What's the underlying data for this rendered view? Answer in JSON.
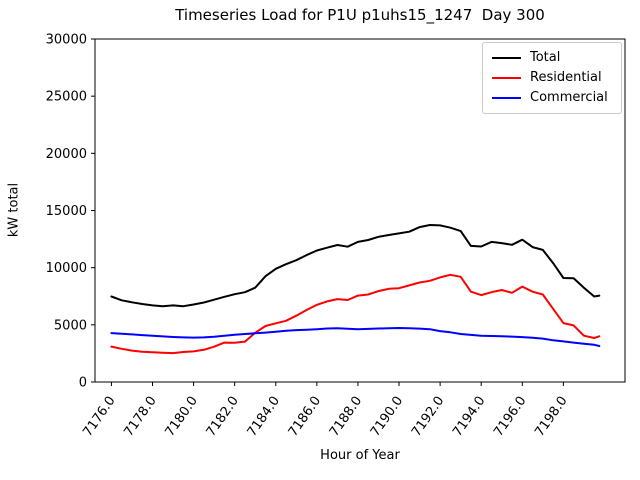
{
  "figure": {
    "title": "Timeseries Load for P1U p1uhs15_1247  Day 300",
    "xlabel": "Hour of Year",
    "ylabel": "kW total"
  },
  "legend": {
    "position": "upper right",
    "entries": [
      {
        "label": "Total",
        "color": "#000000"
      },
      {
        "label": "Residential",
        "color": "#ff0000"
      },
      {
        "label": "Commercial",
        "color": "#0000ff"
      }
    ]
  },
  "chart_data": {
    "type": "line",
    "title": "Timeseries Load for P1U p1uhs15_1247  Day 300",
    "xlabel": "Hour of Year",
    "ylabel": "kW total",
    "xlim": [
      7175.2,
      7201.0
    ],
    "ylim": [
      0,
      30000
    ],
    "grid": false,
    "legend_position": "upper right",
    "x_tick_values": [
      7176,
      7178,
      7180,
      7182,
      7184,
      7186,
      7188,
      7190,
      7192,
      7194,
      7196,
      7198
    ],
    "x_tick_labels": [
      "7176.0",
      "7178.0",
      "7180.0",
      "7182.0",
      "7184.0",
      "7186.0",
      "7188.0",
      "7190.0",
      "7192.0",
      "7194.0",
      "7196.0",
      "7198.0"
    ],
    "y_tick_values": [
      0,
      5000,
      10000,
      15000,
      20000,
      25000,
      30000
    ],
    "y_tick_labels": [
      "0",
      "5000",
      "10000",
      "15000",
      "20000",
      "25000",
      "30000"
    ],
    "x": [
      7176.0,
      7176.5,
      7177.0,
      7177.5,
      7178.0,
      7178.5,
      7179.0,
      7179.5,
      7180.0,
      7180.5,
      7181.0,
      7181.5,
      7182.0,
      7182.5,
      7183.0,
      7183.5,
      7184.0,
      7184.5,
      7185.0,
      7185.5,
      7186.0,
      7186.5,
      7187.0,
      7187.5,
      7188.0,
      7188.5,
      7189.0,
      7189.5,
      7190.0,
      7190.5,
      7191.0,
      7191.5,
      7192.0,
      7192.5,
      7193.0,
      7193.5,
      7194.0,
      7194.5,
      7195.0,
      7195.5,
      7196.0,
      7196.5,
      7197.0,
      7197.5,
      7198.0,
      7198.5,
      7199.0,
      7199.5,
      7199.75
    ],
    "series": [
      {
        "name": "Total",
        "color": "#000000",
        "values": [
          7480,
          7150,
          6970,
          6820,
          6700,
          6630,
          6700,
          6630,
          6780,
          6950,
          7200,
          7450,
          7680,
          7850,
          8250,
          9250,
          9900,
          10300,
          10650,
          11100,
          11500,
          11750,
          11980,
          11830,
          12250,
          12420,
          12700,
          12860,
          13000,
          13150,
          13550,
          13730,
          13700,
          13500,
          13200,
          11900,
          11850,
          12250,
          12150,
          12000,
          12450,
          11800,
          11550,
          10400,
          9100,
          9070,
          8250,
          7480,
          7560
        ]
      },
      {
        "name": "Residential",
        "color": "#ff0000",
        "values": [
          3100,
          2900,
          2750,
          2650,
          2600,
          2550,
          2530,
          2620,
          2680,
          2820,
          3090,
          3450,
          3430,
          3530,
          4300,
          4900,
          5130,
          5350,
          5800,
          6300,
          6750,
          7050,
          7250,
          7170,
          7560,
          7650,
          7950,
          8150,
          8200,
          8450,
          8700,
          8850,
          9150,
          9380,
          9200,
          7900,
          7600,
          7850,
          8050,
          7800,
          8340,
          7900,
          7650,
          6400,
          5150,
          4950,
          4050,
          3850,
          4000
        ]
      },
      {
        "name": "Commercial",
        "color": "#0000ff",
        "values": [
          4280,
          4220,
          4160,
          4100,
          4040,
          3990,
          3940,
          3900,
          3880,
          3900,
          3960,
          4050,
          4130,
          4200,
          4260,
          4320,
          4400,
          4480,
          4540,
          4570,
          4620,
          4680,
          4700,
          4660,
          4620,
          4640,
          4680,
          4700,
          4720,
          4700,
          4670,
          4620,
          4450,
          4350,
          4200,
          4120,
          4050,
          4020,
          4000,
          3970,
          3930,
          3870,
          3800,
          3650,
          3550,
          3450,
          3350,
          3250,
          3150
        ]
      }
    ]
  }
}
